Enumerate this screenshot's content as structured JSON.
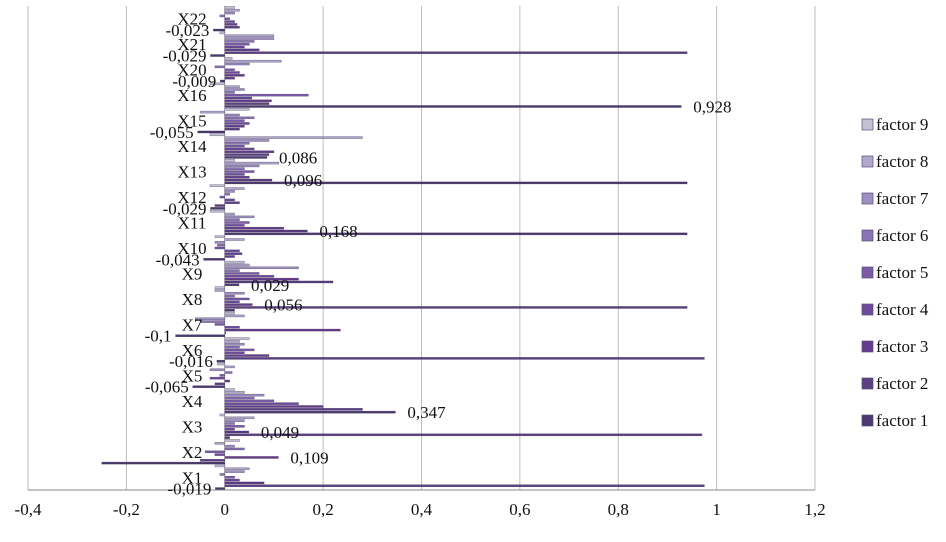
{
  "chart_data": {
    "type": "bar",
    "orientation": "horizontal",
    "xlim": [
      -0.4,
      1.2
    ],
    "x_ticks": [
      "-0,4",
      "-0,2",
      "0",
      "0,2",
      "0,4",
      "0,6",
      "0,8",
      "1",
      "1,2"
    ],
    "x_tick_values": [
      -0.4,
      -0.2,
      0,
      0.2,
      0.4,
      0.6,
      0.8,
      1.0,
      1.2
    ],
    "grid": true,
    "legend_position": "right",
    "categories": [
      "X1",
      "X2",
      "X3",
      "X4",
      "X5",
      "X6",
      "X7",
      "X8",
      "X9",
      "X10",
      "X11",
      "X12",
      "X13",
      "X14",
      "X15",
      "X16",
      "X20",
      "X21",
      "X22"
    ],
    "series": [
      {
        "name": "factor 1",
        "color": "#4b3a6e",
        "values": [
          -0.019,
          -0.25,
          0.01,
          0.347,
          -0.065,
          -0.016,
          -0.1,
          0.02,
          0.029,
          -0.043,
          0.94,
          -0.029,
          0.94,
          0.086,
          -0.055,
          0.928,
          -0.009,
          -0.029,
          -0.023
        ]
      },
      {
        "name": "factor 2",
        "color": "#5b3f80",
        "values": [
          0.975,
          -0.05,
          0.97,
          0.28,
          -0.02,
          0.975,
          0.0,
          0.94,
          0.22,
          0.02,
          0.168,
          -0.02,
          0.096,
          0.09,
          0.03,
          0.09,
          0.02,
          0.94,
          0.03
        ]
      },
      {
        "name": "factor 3",
        "color": "#633c8a",
        "values": [
          0.08,
          0.109,
          0.049,
          0.2,
          0.01,
          0.09,
          0.235,
          0.056,
          0.15,
          0.035,
          0.12,
          0.03,
          0.05,
          0.1,
          0.04,
          0.095,
          0.04,
          0.07,
          0.025
        ]
      },
      {
        "name": "factor 4",
        "color": "#6d4a9a",
        "values": [
          0.03,
          -0.02,
          0.02,
          0.15,
          -0.03,
          0.04,
          0.03,
          0.03,
          0.1,
          0.03,
          0.04,
          0.02,
          0.04,
          0.06,
          0.05,
          0.055,
          0.03,
          0.04,
          0.02
        ]
      },
      {
        "name": "factor 5",
        "color": "#7b5ba8",
        "values": [
          0.02,
          -0.04,
          0.04,
          0.1,
          -0.01,
          0.06,
          -0.02,
          0.05,
          0.07,
          -0.02,
          0.05,
          -0.01,
          0.06,
          0.04,
          0.04,
          0.17,
          0.02,
          0.05,
          0.01
        ]
      },
      {
        "name": "factor 6",
        "color": "#8a73b3",
        "values": [
          -0.01,
          0.04,
          0.02,
          0.06,
          0.015,
          0.03,
          -0.05,
          0.02,
          0.03,
          -0.015,
          0.03,
          0.01,
          0.04,
          0.05,
          0.06,
          0.02,
          -0.02,
          0.06,
          -0.01
        ]
      },
      {
        "name": "factor 7",
        "color": "#9d8fc0",
        "values": [
          0.04,
          0.02,
          0.04,
          0.08,
          -0.03,
          0.04,
          -0.06,
          0.04,
          0.15,
          -0.02,
          0.06,
          0.02,
          0.07,
          0.09,
          0.03,
          0.04,
          0.05,
          0.1,
          0.02
        ]
      },
      {
        "name": "factor 8",
        "color": "#b0a7cb",
        "values": [
          0.05,
          -0.02,
          0.06,
          0.04,
          0.02,
          0.03,
          0.04,
          -0.02,
          0.05,
          0.04,
          0.02,
          0.04,
          0.11,
          0.28,
          -0.05,
          0.03,
          0.115,
          0.1,
          0.03
        ]
      },
      {
        "name": "factor 9",
        "color": "#c4c0d6",
        "values": [
          -0.02,
          0.03,
          -0.01,
          0.02,
          -0.015,
          0.05,
          0.02,
          -0.02,
          0.04,
          -0.02,
          -0.03,
          -0.03,
          0.02,
          -0.03,
          0.05,
          -0.03,
          0.015,
          -0.01,
          0.02
        ]
      }
    ],
    "data_labels": [
      {
        "category": "X1",
        "series": "factor 1",
        "text": "-0,019"
      },
      {
        "category": "X2",
        "series": "factor 3",
        "text": "0,109"
      },
      {
        "category": "X3",
        "series": "factor 3",
        "text": "0,049"
      },
      {
        "category": "X4",
        "series": "factor 1",
        "text": "0,347"
      },
      {
        "category": "X5",
        "series": "factor 1",
        "text": "-0,065"
      },
      {
        "category": "X6",
        "series": "factor 1",
        "text": "-0,016"
      },
      {
        "category": "X7",
        "series": "factor 1",
        "text": "-0,1"
      },
      {
        "category": "X8",
        "series": "factor 3",
        "text": "0,056"
      },
      {
        "category": "X9",
        "series": "factor 1",
        "text": "0,029"
      },
      {
        "category": "X10",
        "series": "factor 1",
        "text": "-0,043"
      },
      {
        "category": "X11",
        "series": "factor 2",
        "text": "0,168"
      },
      {
        "category": "X12",
        "series": "factor 1",
        "text": "-0,029"
      },
      {
        "category": "X13",
        "series": "factor 2",
        "text": "0,096"
      },
      {
        "category": "X14",
        "series": "factor 1",
        "text": "0,086"
      },
      {
        "category": "X15",
        "series": "factor 1",
        "text": "-0,055"
      },
      {
        "category": "X16",
        "series": "factor 1",
        "text": "0,928"
      },
      {
        "category": "X20",
        "series": "factor 1",
        "text": "-0,009"
      },
      {
        "category": "X21",
        "series": "factor 1",
        "text": "-0,029"
      },
      {
        "category": "X22",
        "series": "factor 1",
        "text": "-0,023"
      }
    ]
  }
}
